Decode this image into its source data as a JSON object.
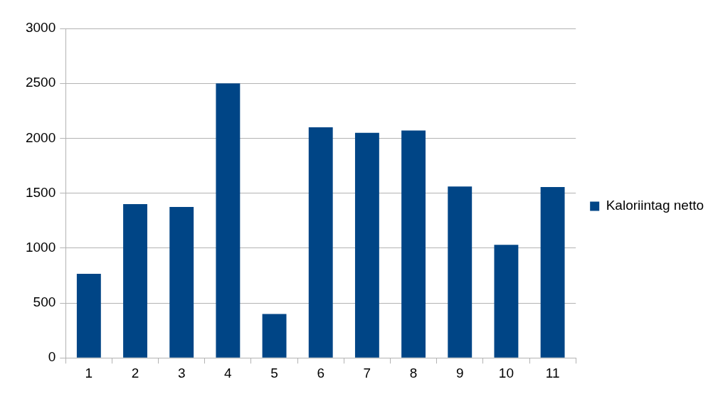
{
  "chart_data": {
    "type": "bar",
    "categories": [
      "1",
      "2",
      "3",
      "4",
      "5",
      "6",
      "7",
      "8",
      "9",
      "10",
      "11"
    ],
    "series": [
      {
        "name": "Kaloriintag netto",
        "color": "#004586",
        "values": [
          765,
          1400,
          1375,
          2500,
          400,
          2100,
          2050,
          2070,
          1560,
          1030,
          1555
        ]
      }
    ],
    "ylim": [
      0,
      3000
    ],
    "yticks": [
      0,
      500,
      1000,
      1500,
      2000,
      2500,
      3000
    ],
    "grid": "y",
    "legend": "right"
  }
}
